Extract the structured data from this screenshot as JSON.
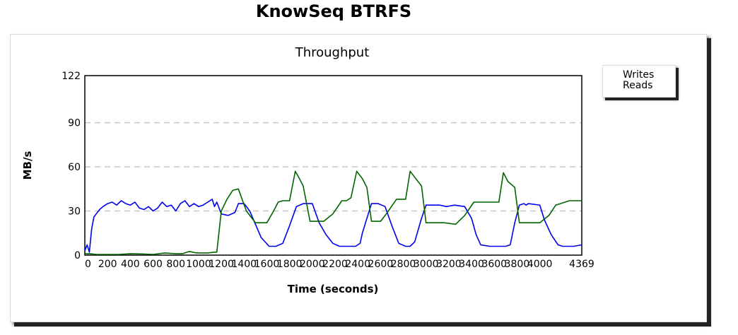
{
  "page": {
    "title": "KnowSeq BTRFS"
  },
  "legend": {
    "items": [
      {
        "label": "Writes",
        "color": "#0000ee"
      },
      {
        "label": "Reads",
        "color": "#006400"
      }
    ]
  },
  "chart_data": {
    "type": "line",
    "title": "Throughput",
    "xlabel": "Time (seconds)",
    "ylabel": "MB/s",
    "xlim": [
      0,
      4369
    ],
    "ylim": [
      0,
      122
    ],
    "yticks": [
      0,
      30,
      60,
      90,
      122
    ],
    "xticks": [
      0,
      200,
      400,
      600,
      800,
      1000,
      1200,
      1400,
      1600,
      1800,
      2000,
      2200,
      2400,
      2600,
      2800,
      3000,
      3200,
      3400,
      3600,
      3800,
      4000,
      4369
    ],
    "grid": "horizontal-dashed",
    "legend_position": "right",
    "series": [
      {
        "name": "Writes",
        "color": "#0000ee",
        "x": [
          0,
          20,
          40,
          60,
          80,
          100,
          130,
          160,
          200,
          240,
          280,
          320,
          360,
          400,
          440,
          480,
          520,
          560,
          600,
          640,
          680,
          720,
          760,
          800,
          840,
          880,
          920,
          960,
          1000,
          1040,
          1080,
          1120,
          1140,
          1160,
          1200,
          1260,
          1320,
          1350,
          1400,
          1450,
          1550,
          1620,
          1680,
          1740,
          1800,
          1860,
          1920,
          1960,
          2000,
          2060,
          2120,
          2180,
          2240,
          2300,
          2380,
          2420,
          2440,
          2480,
          2520,
          2580,
          2640,
          2700,
          2760,
          2820,
          2860,
          2900,
          2960,
          3000,
          3060,
          3120,
          3180,
          3250,
          3340,
          3400,
          3440,
          3480,
          3560,
          3600,
          3700,
          3740,
          3780,
          3820,
          3860,
          3880,
          3900,
          4000,
          4040,
          4100,
          4160,
          4200,
          4300,
          4369
        ],
        "y": [
          3,
          7,
          2,
          18,
          26,
          28,
          31,
          33,
          35,
          36,
          34,
          37,
          35,
          34,
          36,
          32,
          31,
          33,
          30,
          32,
          36,
          33,
          34,
          30,
          35,
          37,
          33,
          35,
          33,
          34,
          36,
          38,
          33,
          36,
          28,
          27,
          29,
          35,
          35,
          30,
          12,
          6,
          6,
          8,
          20,
          33,
          35,
          35,
          35,
          22,
          14,
          8,
          6,
          6,
          6,
          8,
          15,
          25,
          35,
          35,
          33,
          20,
          8,
          6,
          6,
          9,
          25,
          34,
          34,
          34,
          33,
          34,
          33,
          25,
          14,
          7,
          6,
          6,
          6,
          7,
          22,
          34,
          35,
          34,
          35,
          34,
          24,
          14,
          7,
          6,
          6,
          7
        ]
      },
      {
        "name": "Reads",
        "color": "#006400",
        "x": [
          0,
          40,
          100,
          200,
          300,
          400,
          500,
          600,
          700,
          800,
          860,
          920,
          980,
          1080,
          1140,
          1160,
          1200,
          1250,
          1300,
          1350,
          1420,
          1500,
          1600,
          1660,
          1700,
          1740,
          1800,
          1850,
          1880,
          1920,
          1980,
          2040,
          2100,
          2180,
          2260,
          2300,
          2340,
          2390,
          2440,
          2480,
          2520,
          2560,
          2600,
          2660,
          2740,
          2820,
          2860,
          2900,
          2960,
          3000,
          3040,
          3080,
          3160,
          3260,
          3340,
          3420,
          3480,
          3560,
          3640,
          3680,
          3720,
          3780,
          3820,
          3900,
          4000,
          4080,
          4140,
          4260,
          4369
        ],
        "y": [
          1,
          1,
          0.5,
          0.5,
          0.5,
          1,
          0.8,
          0.5,
          1.5,
          1,
          1,
          2.5,
          1.5,
          1.5,
          2,
          2,
          30,
          38,
          44,
          45,
          30,
          22,
          22,
          30,
          36,
          37,
          37,
          57,
          53,
          47,
          23,
          23,
          23,
          28,
          37,
          37,
          39,
          57,
          52,
          46,
          23,
          23,
          23,
          29,
          38,
          38,
          57,
          53,
          47,
          22,
          22,
          22,
          22,
          21,
          27,
          36,
          36,
          36,
          36,
          56,
          50,
          46,
          22,
          22,
          22,
          27,
          34,
          37,
          37
        ]
      }
    ]
  }
}
